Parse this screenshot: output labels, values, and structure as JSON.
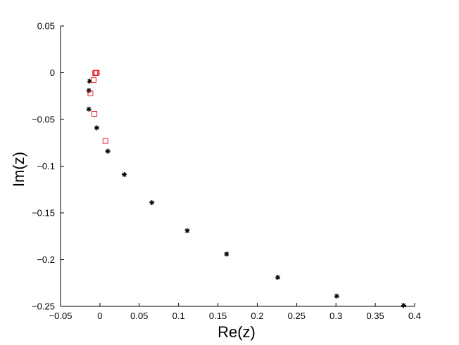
{
  "chart_data": {
    "type": "scatter",
    "xlabel": "Re(z)",
    "ylabel": "Im(z)",
    "xlim": [
      -0.05,
      0.4
    ],
    "ylim": [
      -0.25,
      0.05
    ],
    "x_ticks": [
      -0.05,
      0,
      0.05,
      0.1,
      0.15,
      0.2,
      0.25,
      0.3,
      0.35,
      0.4
    ],
    "x_tick_labels": [
      "−0.05",
      "0",
      "0.05",
      "0.1",
      "0.15",
      "0.2",
      "0.25",
      "0.3",
      "0.35",
      "0.4"
    ],
    "y_ticks": [
      0.05,
      0,
      -0.05,
      -0.1,
      -0.15,
      -0.2,
      -0.25
    ],
    "y_tick_labels": [
      "0.05",
      "0",
      "−0.05",
      "−0.1",
      "−0.15",
      "−0.2",
      "−0.25"
    ],
    "grid": false,
    "series": [
      {
        "marker": "asterisk",
        "color": "#000000",
        "points": [
          [
            -0.013,
            -0.009
          ],
          [
            -0.014,
            -0.019
          ],
          [
            -0.014,
            -0.039
          ],
          [
            -0.004,
            -0.059
          ],
          [
            0.01,
            -0.084
          ],
          [
            0.031,
            -0.109
          ],
          [
            0.066,
            -0.139
          ],
          [
            0.111,
            -0.169
          ],
          [
            0.161,
            -0.194
          ],
          [
            0.226,
            -0.219
          ],
          [
            0.301,
            -0.239
          ],
          [
            0.386,
            -0.249
          ]
        ]
      },
      {
        "marker": "square",
        "color": "#e8202a",
        "points": [
          [
            -0.004,
            0.0
          ],
          [
            -0.005,
            0.0
          ],
          [
            -0.006,
            -0.0005
          ],
          [
            -0.008,
            -0.008
          ],
          [
            -0.012,
            -0.022
          ],
          [
            -0.007,
            -0.044
          ],
          [
            0.007,
            -0.073
          ]
        ]
      }
    ]
  }
}
